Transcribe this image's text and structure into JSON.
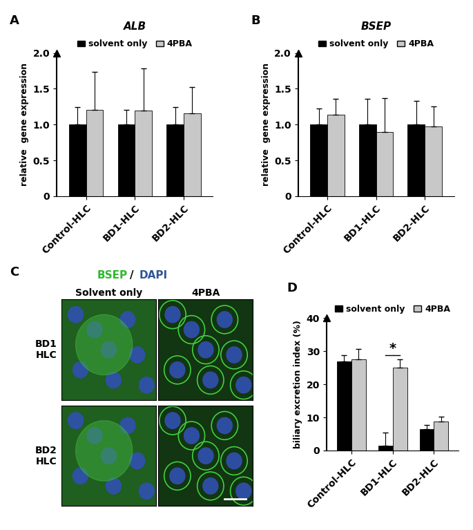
{
  "chart_data": [
    {
      "type": "bar",
      "panel": "A",
      "title": "ALB",
      "y_label": "relative  gene expression",
      "categories": [
        "Control-HLC",
        "BD1-HLC",
        "BD2-HLC"
      ],
      "series": [
        {
          "name": "solvent only",
          "color": "#000000",
          "values": [
            1.0,
            1.0,
            1.0
          ],
          "errors": [
            0.24,
            0.21,
            0.24
          ]
        },
        {
          "name": "4PBA",
          "color": "#c8c8c8",
          "values": [
            1.21,
            1.2,
            1.16
          ],
          "errors": [
            0.53,
            0.58,
            0.36
          ]
        }
      ],
      "ylim": [
        0,
        2
      ],
      "yticks": [
        0,
        0.5,
        {
          "value": 1,
          "label": "1.0"
        },
        1.5,
        {
          "value": 2,
          "label": "2.0"
        }
      ],
      "legend": "top",
      "grid": false
    },
    {
      "type": "bar",
      "panel": "B",
      "title": "BSEP",
      "y_label": "relative  gene expression",
      "categories": [
        "Control-HLC",
        "BD1-HLC",
        "BD2-HLC"
      ],
      "series": [
        {
          "name": "solvent only",
          "color": "#000000",
          "values": [
            1.0,
            1.0,
            1.0
          ],
          "errors": [
            0.22,
            0.36,
            0.33
          ]
        },
        {
          "name": "4PBA",
          "color": "#c8c8c8",
          "values": [
            1.14,
            0.9,
            0.97
          ],
          "errors": [
            0.22,
            0.47,
            0.28
          ]
        }
      ],
      "ylim": [
        0,
        2
      ],
      "yticks": [
        0,
        0.5,
        {
          "value": 1,
          "label": "1.0"
        },
        1.5,
        {
          "value": 2,
          "label": "2.0"
        }
      ],
      "legend": "top",
      "grid": false
    },
    {
      "type": "bar",
      "panel": "D",
      "y_label": "biliary excretion index (%)",
      "categories": [
        "Control-HLC",
        "BD1-HLC",
        "BD2-HLC"
      ],
      "series": [
        {
          "name": "solvent only",
          "color": "#000000",
          "values": [
            27,
            1.5,
            6.5
          ],
          "errors": [
            1.8,
            4,
            1.2
          ]
        },
        {
          "name": "4PBA",
          "color": "#c8c8c8",
          "values": [
            27.5,
            25,
            8.8
          ],
          "errors": [
            3.2,
            2.5,
            1.5
          ]
        }
      ],
      "ylim": [
        0,
        40
      ],
      "yticks": [
        0,
        10,
        20,
        30,
        40
      ],
      "annotations": [
        {
          "text": "*",
          "category": "BD1-HLC"
        }
      ],
      "legend": "top",
      "grid": false
    }
  ],
  "image_panel": {
    "panel": "C",
    "stain_title": [
      {
        "text": "BSEP",
        "color": "#2eb82e"
      },
      {
        "text": "/",
        "color": "#000000"
      },
      {
        "text": "DAPI",
        "color": "#2f5597"
      }
    ],
    "columns": [
      "Solvent only",
      "4PBA"
    ],
    "rows": [
      "BD1\nHLC",
      "BD2\nHLC"
    ]
  }
}
